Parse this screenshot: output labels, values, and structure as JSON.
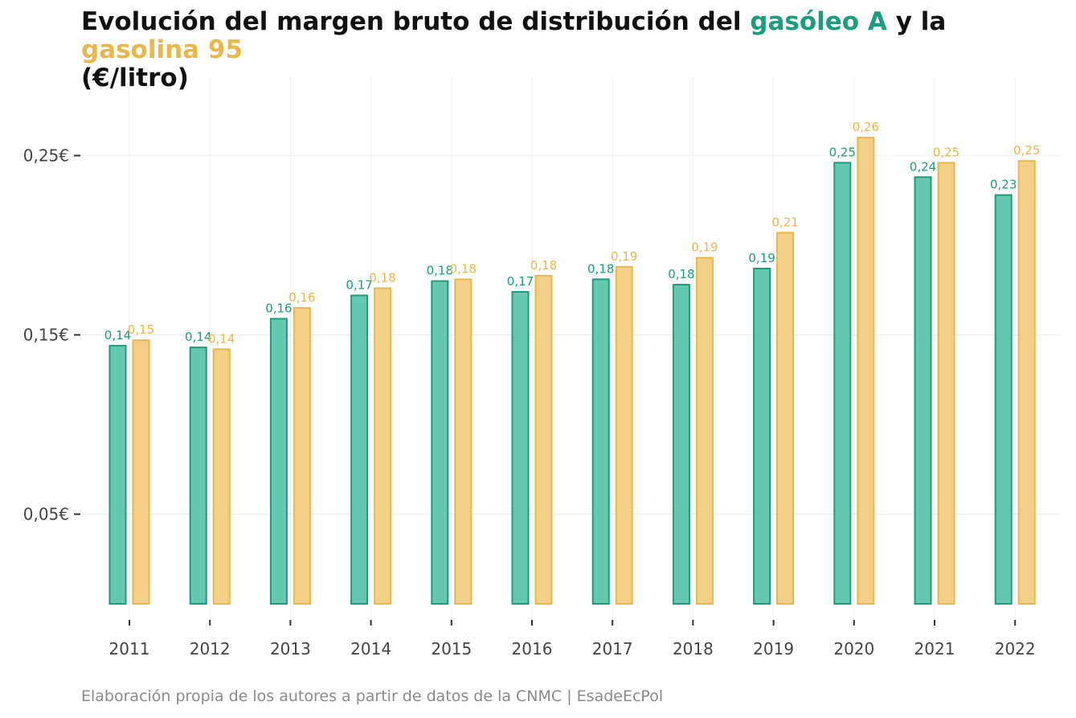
{
  "title": {
    "prefix": "Evolución del margen bruto de distribución del",
    "series_a": "gasóleo A",
    "middle": "y la",
    "series_b": "gasolina 95",
    "suffix": "(€/litro)"
  },
  "caption": "Elaboración propia de los autores a partir de datos de la CNMC | EsadeEcPol",
  "colors": {
    "series_a_fill": "#66c8ae",
    "series_a_stroke": "#1a9e7e",
    "series_a_label": "#1a9e7e",
    "series_b_fill": "#f3d088",
    "series_b_stroke": "#e8b84a",
    "series_b_label": "#e8b84a"
  },
  "chart_data": {
    "type": "bar",
    "title": "Evolución del margen bruto de distribución del gasóleo A y la gasolina 95 (€/litro)",
    "xlabel": "",
    "ylabel": "",
    "categories": [
      "2011",
      "2012",
      "2013",
      "2014",
      "2015",
      "2016",
      "2017",
      "2018",
      "2019",
      "2020",
      "2021",
      "2022"
    ],
    "series": [
      {
        "name": "gasóleo A",
        "values": [
          0.144,
          0.143,
          0.159,
          0.172,
          0.18,
          0.174,
          0.181,
          0.178,
          0.187,
          0.246,
          0.238,
          0.228
        ],
        "labels": [
          "0,14",
          "0,14",
          "0,16",
          "0,17",
          "0,18",
          "0,17",
          "0,18",
          "0,18",
          "0,19",
          "0,25",
          "0,24",
          "0,23"
        ]
      },
      {
        "name": "gasolina 95",
        "values": [
          0.147,
          0.142,
          0.165,
          0.176,
          0.181,
          0.183,
          0.188,
          0.193,
          0.207,
          0.26,
          0.246,
          0.247
        ],
        "labels": [
          "0,15",
          "0,14",
          "0,16",
          "0,18",
          "0,18",
          "0,18",
          "0,19",
          "0,19",
          "0,21",
          "0,26",
          "0,25",
          "0,25"
        ]
      }
    ],
    "ylim": [
      0,
      0.28
    ],
    "yticks": [
      0.05,
      0.15,
      0.25
    ],
    "ytick_labels": [
      "0,05€",
      "0,15€",
      "0,25€"
    ],
    "grid": true,
    "legend": "in-title"
  }
}
